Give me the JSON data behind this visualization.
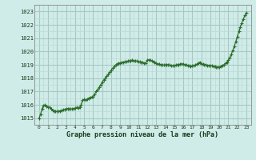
{
  "title": "Graphe pression niveau de la mer (hPa)",
  "bg_color": "#d0ece8",
  "grid_color_major": "#a8c8c4",
  "grid_color_minor": "#bcdad6",
  "line_color": "#2d6e2d",
  "marker_color": "#2d6e2d",
  "xlim": [
    -0.5,
    23.5
  ],
  "ylim": [
    1014.5,
    1023.5
  ],
  "yticks": [
    1015,
    1016,
    1017,
    1018,
    1019,
    1020,
    1021,
    1022,
    1023
  ],
  "xticks": [
    0,
    1,
    2,
    3,
    4,
    5,
    6,
    7,
    8,
    9,
    10,
    11,
    12,
    13,
    14,
    15,
    16,
    17,
    18,
    19,
    20,
    21,
    22,
    23
  ],
  "x": [
    0,
    0.17,
    0.33,
    0.5,
    0.67,
    0.83,
    1.0,
    1.17,
    1.33,
    1.5,
    1.67,
    1.83,
    2.0,
    2.17,
    2.33,
    2.5,
    2.67,
    2.83,
    3.0,
    3.17,
    3.33,
    3.5,
    3.67,
    3.83,
    4.0,
    4.17,
    4.33,
    4.5,
    4.67,
    4.83,
    5.0,
    5.17,
    5.33,
    5.5,
    5.67,
    5.83,
    6.0,
    6.17,
    6.33,
    6.5,
    6.67,
    6.83,
    7.0,
    7.17,
    7.33,
    7.5,
    7.67,
    7.83,
    8.0,
    8.17,
    8.33,
    8.5,
    8.67,
    8.83,
    9.0,
    9.17,
    9.33,
    9.5,
    9.67,
    9.83,
    10.0,
    10.17,
    10.33,
    10.5,
    10.67,
    10.83,
    11.0,
    11.17,
    11.33,
    11.5,
    11.67,
    11.83,
    12.0,
    12.17,
    12.33,
    12.5,
    12.67,
    12.83,
    13.0,
    13.17,
    13.33,
    13.5,
    13.67,
    13.83,
    14.0,
    14.17,
    14.33,
    14.5,
    14.67,
    14.83,
    15.0,
    15.17,
    15.33,
    15.5,
    15.67,
    15.83,
    16.0,
    16.17,
    16.33,
    16.5,
    16.67,
    16.83,
    17.0,
    17.17,
    17.33,
    17.5,
    17.67,
    17.83,
    18.0,
    18.17,
    18.33,
    18.5,
    18.67,
    18.83,
    19.0,
    19.17,
    19.33,
    19.5,
    19.67,
    19.83,
    20.0,
    20.17,
    20.33,
    20.5,
    20.67,
    20.83,
    21.0,
    21.17,
    21.33,
    21.5,
    21.67,
    21.83,
    22.0,
    22.17,
    22.33,
    22.5,
    22.67,
    22.83,
    23.0
  ],
  "y": [
    1015.0,
    1015.3,
    1015.7,
    1015.95,
    1016.0,
    1015.9,
    1015.85,
    1015.8,
    1015.7,
    1015.6,
    1015.55,
    1015.5,
    1015.5,
    1015.52,
    1015.55,
    1015.58,
    1015.62,
    1015.65,
    1015.7,
    1015.72,
    1015.7,
    1015.68,
    1015.7,
    1015.72,
    1015.75,
    1015.8,
    1015.78,
    1015.82,
    1016.0,
    1016.35,
    1016.4,
    1016.38,
    1016.42,
    1016.5,
    1016.55,
    1016.58,
    1016.6,
    1016.8,
    1017.0,
    1017.15,
    1017.3,
    1017.5,
    1017.7,
    1017.85,
    1018.0,
    1018.15,
    1018.3,
    1018.45,
    1018.6,
    1018.75,
    1018.88,
    1019.0,
    1019.08,
    1019.12,
    1019.15,
    1019.18,
    1019.2,
    1019.22,
    1019.25,
    1019.28,
    1019.3,
    1019.32,
    1019.35,
    1019.32,
    1019.3,
    1019.28,
    1019.25,
    1019.22,
    1019.2,
    1019.18,
    1019.15,
    1019.12,
    1019.35,
    1019.38,
    1019.35,
    1019.3,
    1019.25,
    1019.18,
    1019.1,
    1019.08,
    1019.05,
    1019.02,
    1019.0,
    1018.98,
    1019.0,
    1019.02,
    1019.0,
    1018.98,
    1018.95,
    1018.92,
    1018.95,
    1018.98,
    1019.0,
    1019.02,
    1019.05,
    1019.08,
    1019.05,
    1019.02,
    1019.0,
    1018.95,
    1018.92,
    1018.88,
    1018.92,
    1018.95,
    1018.98,
    1019.05,
    1019.12,
    1019.2,
    1019.08,
    1019.05,
    1019.02,
    1019.0,
    1018.97,
    1018.95,
    1018.95,
    1018.92,
    1018.9,
    1018.88,
    1018.85,
    1018.82,
    1018.85,
    1018.9,
    1018.95,
    1019.0,
    1019.1,
    1019.2,
    1019.35,
    1019.55,
    1019.8,
    1020.1,
    1020.4,
    1020.75,
    1021.1,
    1021.5,
    1021.85,
    1022.15,
    1022.45,
    1022.7,
    1022.9
  ]
}
